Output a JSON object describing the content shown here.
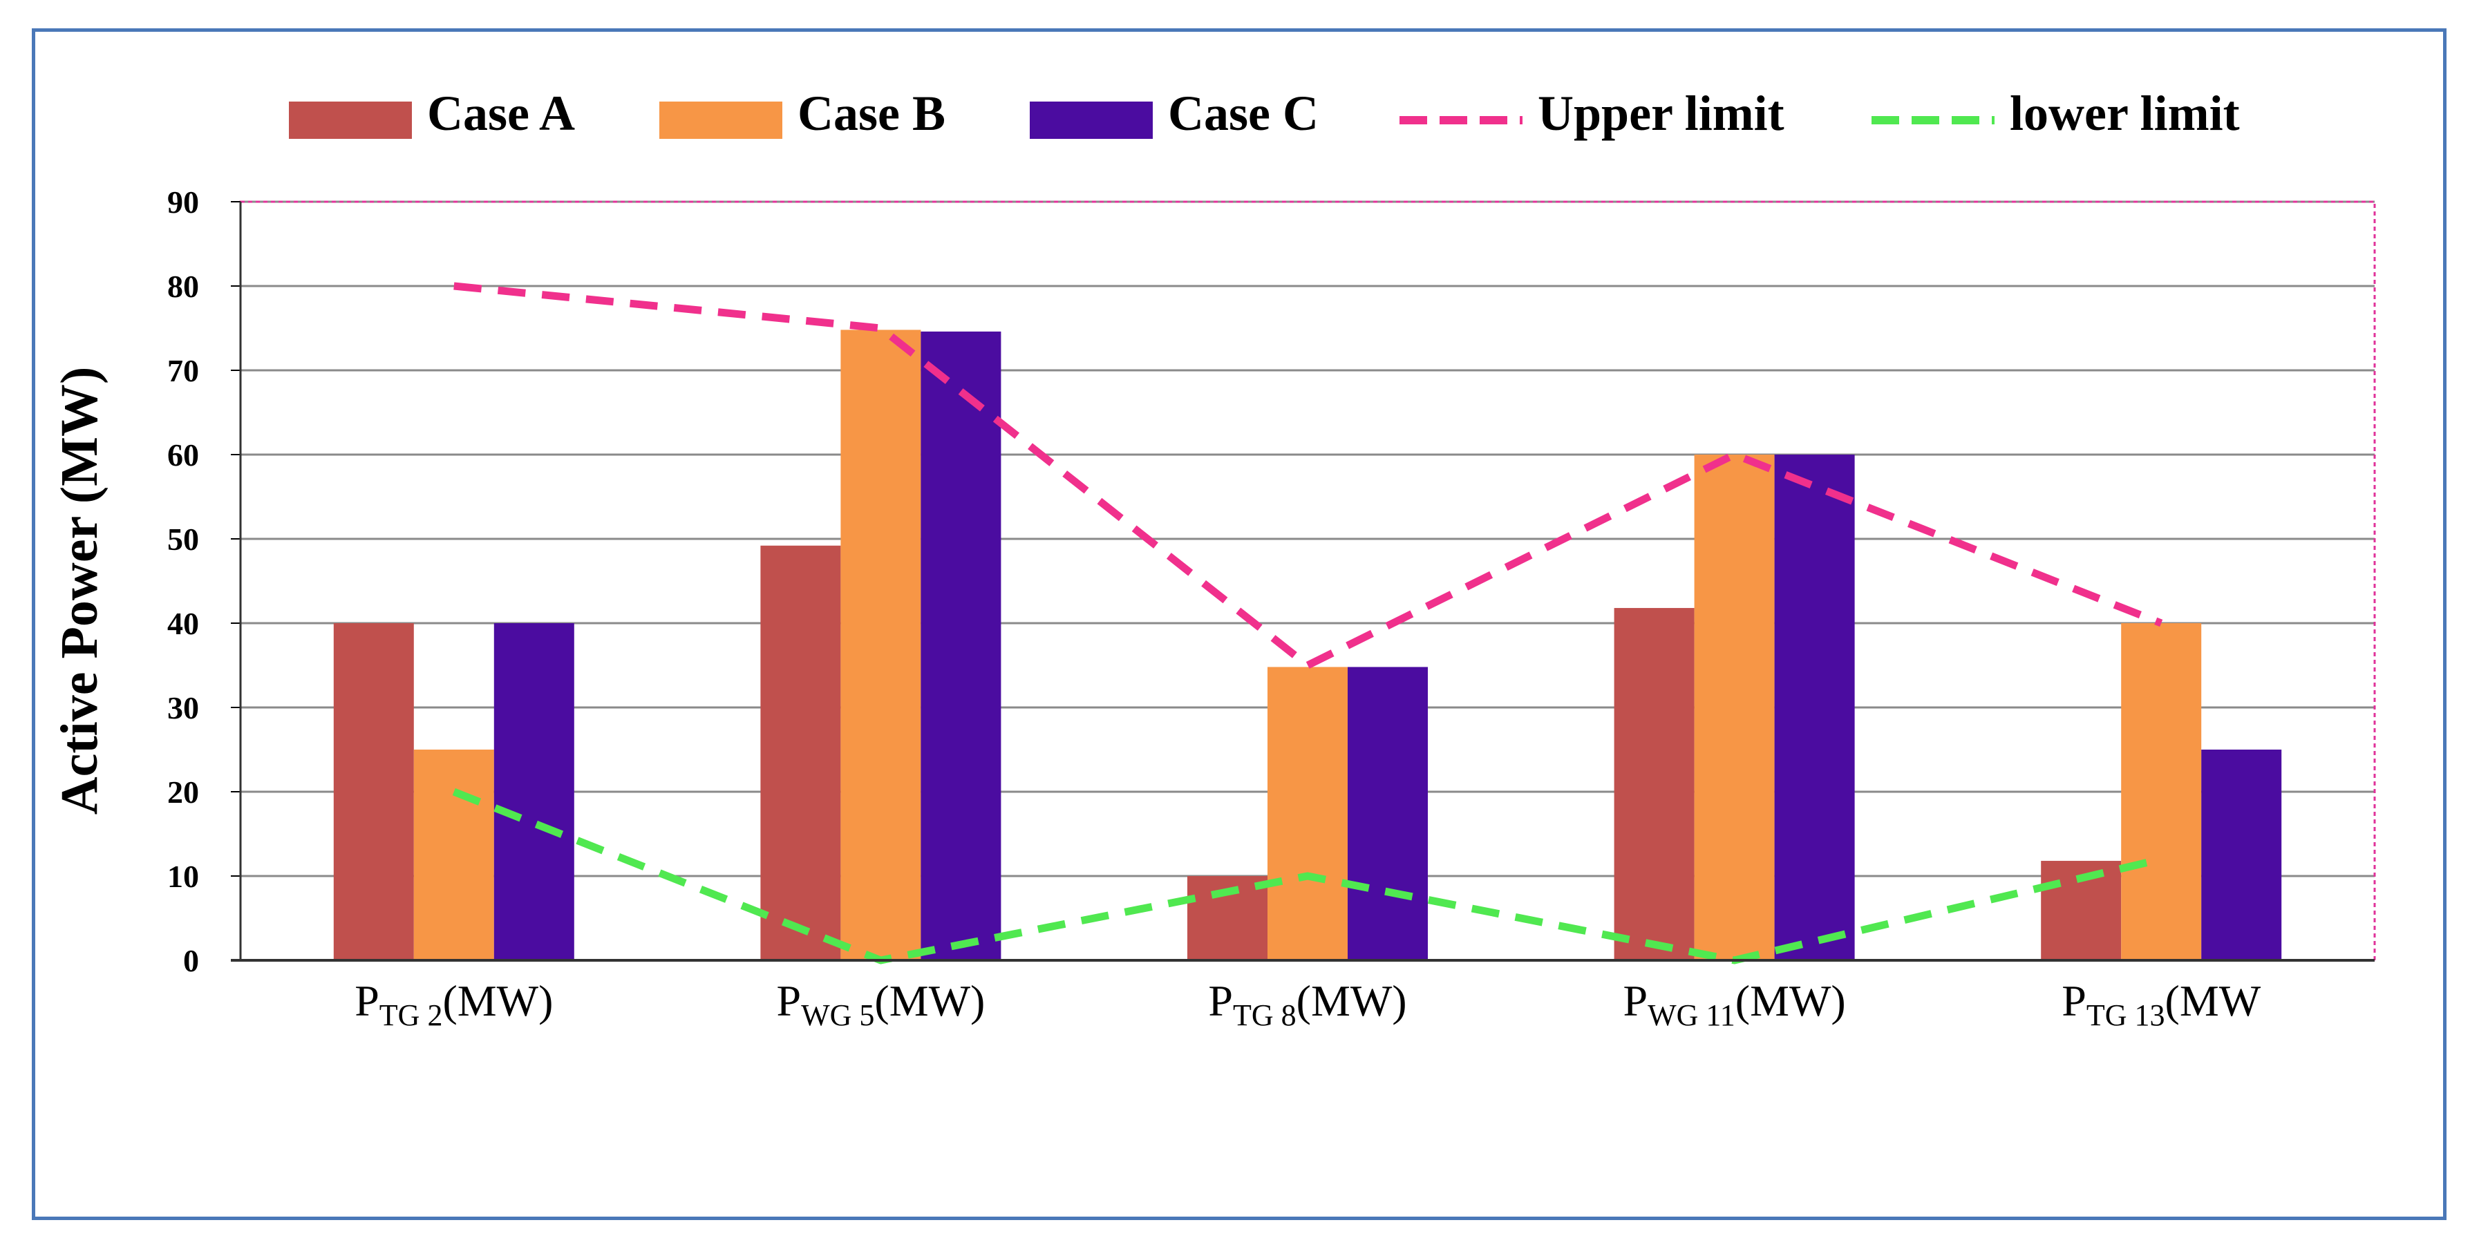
{
  "chart_data": {
    "type": "bar",
    "title": "",
    "xlabel": "",
    "ylabel": "Active Power (MW)",
    "ylim": [
      0,
      90
    ],
    "yticks": [
      0,
      10,
      20,
      30,
      40,
      50,
      60,
      70,
      80,
      90
    ],
    "grid": true,
    "legend_position": "top",
    "categories": [
      {
        "main": "P",
        "sub": "TG 2",
        "unit": "(MW)"
      },
      {
        "main": "P",
        "sub": "WG 5",
        "unit": "(MW)"
      },
      {
        "main": "P",
        "sub": "TG 8",
        "unit": "(MW)"
      },
      {
        "main": "P",
        "sub": "WG 11",
        "unit": "(MW)"
      },
      {
        "main": "P",
        "sub": "TG 13",
        "unit": "(MW"
      }
    ],
    "series": [
      {
        "name": "Case A",
        "kind": "bar",
        "color": "#c0504d",
        "values": [
          40,
          49.2,
          10,
          41.8,
          11.8
        ]
      },
      {
        "name": "Case B",
        "kind": "bar",
        "color": "#f79646",
        "values": [
          25,
          74.8,
          34.8,
          60,
          40
        ]
      },
      {
        "name": "Case C",
        "kind": "bar",
        "color": "#4b0ca0",
        "values": [
          40,
          74.6,
          34.8,
          60,
          25
        ]
      },
      {
        "name": "Upper limit",
        "kind": "line",
        "style": "dashed",
        "color": "#f0308c",
        "values": [
          80,
          75,
          35,
          60,
          40
        ]
      },
      {
        "name": "lower limit",
        "kind": "line",
        "style": "dashed",
        "color": "#50e850",
        "values": [
          20,
          0,
          10,
          0,
          12
        ]
      }
    ]
  }
}
